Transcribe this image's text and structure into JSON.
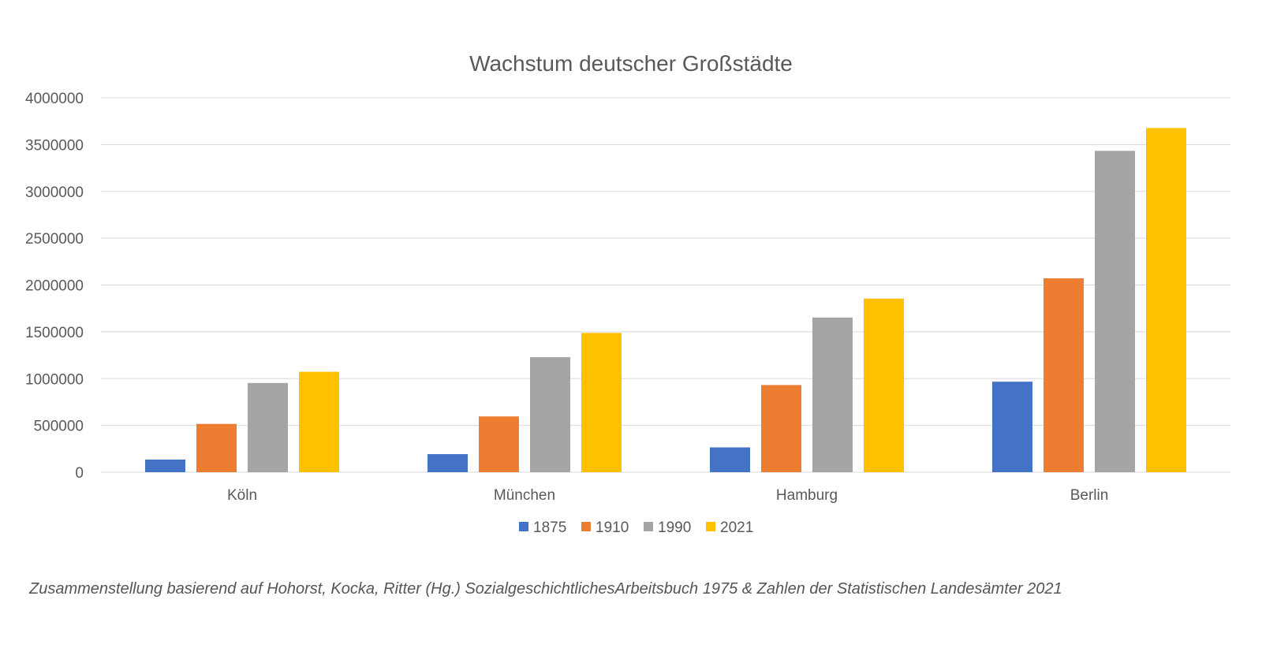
{
  "chart_data": {
    "type": "bar",
    "title": "Wachstum deutscher Großstädte",
    "xlabel": "",
    "ylabel": "",
    "categories": [
      "Köln",
      "München",
      "Hamburg",
      "Berlin"
    ],
    "ylim": [
      0,
      4000000
    ],
    "yticks": [
      "0",
      "500000",
      "1000000",
      "1500000",
      "2000000",
      "2500000",
      "3000000",
      "3500000",
      "4000000"
    ],
    "grid": true,
    "legend": "bottom",
    "series": [
      {
        "name": "1875",
        "color": "#4472C4",
        "values": [
          135000,
          193000,
          265000,
          967000
        ]
      },
      {
        "name": "1910",
        "color": "#ED7D31",
        "values": [
          516000,
          596000,
          931000,
          2071000
        ]
      },
      {
        "name": "1990",
        "color": "#A5A5A5",
        "values": [
          953000,
          1229000,
          1652000,
          3433000
        ]
      },
      {
        "name": "2021",
        "color": "#FFC000",
        "values": [
          1073000,
          1488000,
          1854000,
          3677000
        ]
      }
    ]
  },
  "footnote": "Zusammenstellung basierend auf Hohorst, Kocka, Ritter (Hg.) SozialgeschichtlichesArbeitsbuch 1975 & Zahlen der Statistischen Landesämter 2021"
}
